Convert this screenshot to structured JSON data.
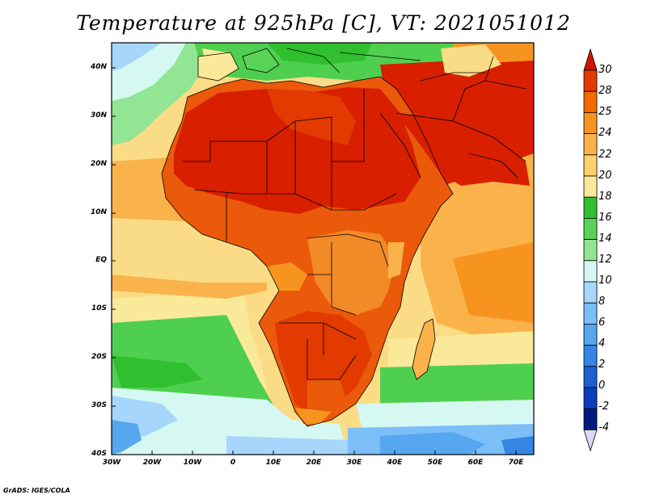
{
  "title": "Temperature at 925hPa [C], VT: 2021051012",
  "credit": "GrADS: IGES/COLA",
  "lat_labels": [
    "40N",
    "30N",
    "20N",
    "10N",
    "EQ",
    "10S",
    "20S",
    "30S",
    "40S"
  ],
  "lon_labels": [
    "30W",
    "20W",
    "10W",
    "0",
    "10E",
    "20E",
    "30E",
    "40E",
    "50E",
    "60E",
    "70E"
  ],
  "map_extent": {
    "lon": [
      -30,
      75
    ],
    "lat": [
      -40,
      45
    ]
  },
  "colorbar": {
    "levels": [
      "30",
      "28",
      "25",
      "24",
      "22",
      "20",
      "18",
      "16",
      "14",
      "12",
      "10",
      "8",
      "6",
      "4",
      "2",
      "0",
      "-2",
      "-4"
    ],
    "colors_top_to_bottom": [
      "#cc1400",
      "#e23a00",
      "#f26a00",
      "#f7941f",
      "#fab34a",
      "#fcd06a",
      "#fbe99a",
      "#2fbf2f",
      "#58d358",
      "#92e592",
      "#d6f8f2",
      "#a6d6fb",
      "#7cbef8",
      "#56a6f0",
      "#3586e4",
      "#1a60d0",
      "#0b3ebc",
      "#001a80",
      "#d9d9f4"
    ]
  },
  "regions": [
    {
      "name": "sahara",
      "color": "#d81f00"
    },
    {
      "name": "sahel",
      "color": "#ea5a0a"
    },
    {
      "name": "tropical-land",
      "color": "#f28a28"
    },
    {
      "name": "ocean-warm",
      "color": "#fbdc86"
    },
    {
      "name": "southern-ocean",
      "color": "#4fcf4f"
    },
    {
      "name": "cold-south",
      "color": "#8fc8fa"
    }
  ]
}
